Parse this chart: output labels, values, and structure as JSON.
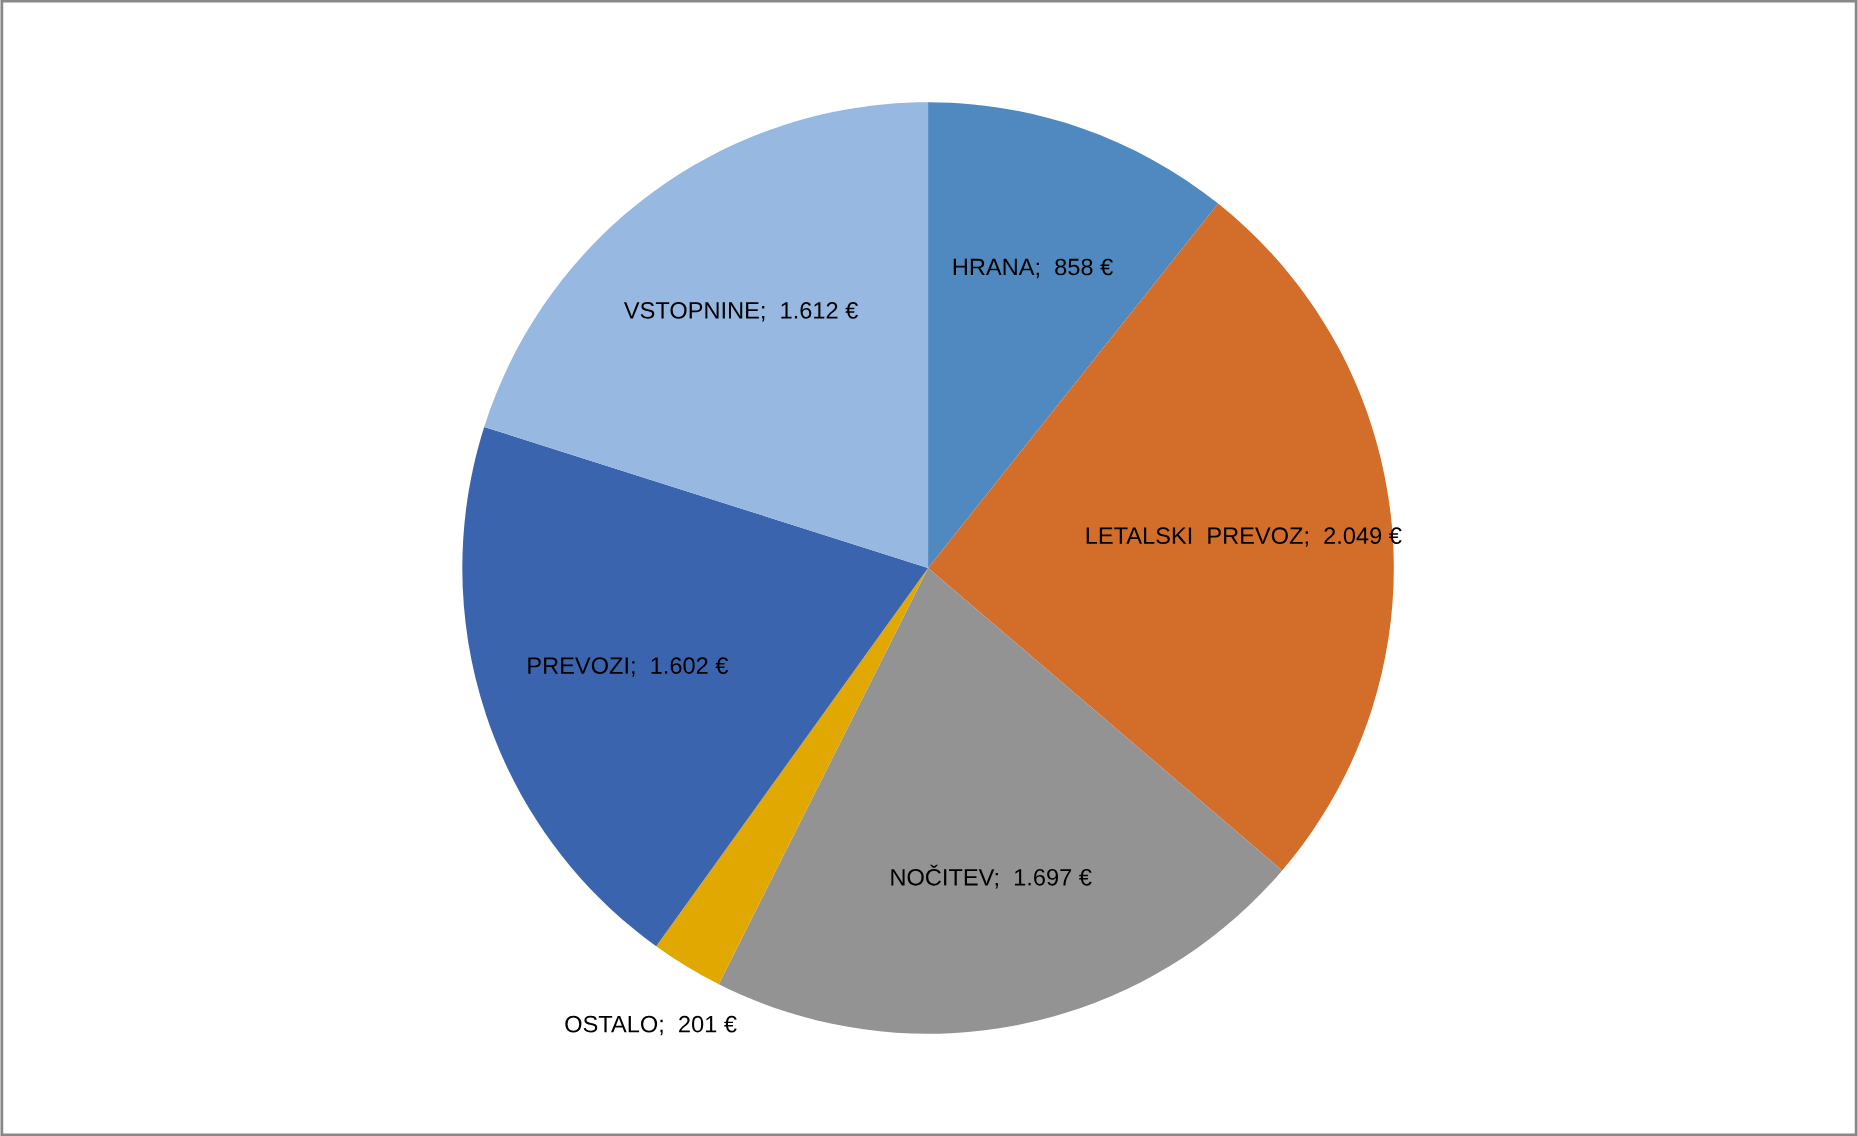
{
  "chart_data": {
    "type": "pie",
    "categories": [
      "HRANA",
      "LETALSKI  PREVOZ",
      "NOČITEV",
      "OSTALO",
      "PREVOZI",
      "VSTOPNINE"
    ],
    "values": [
      858,
      2049,
      1697,
      201,
      1602,
      1612
    ],
    "value_labels": [
      "858 €",
      "2.049 €",
      "1.697 €",
      "201 €",
      "1.602 €",
      "1.612 €"
    ],
    "colors": [
      "#4f89c0",
      "#d36d2a",
      "#939393",
      "#e0a800",
      "#3b64ae",
      "#97b8e0"
    ]
  }
}
